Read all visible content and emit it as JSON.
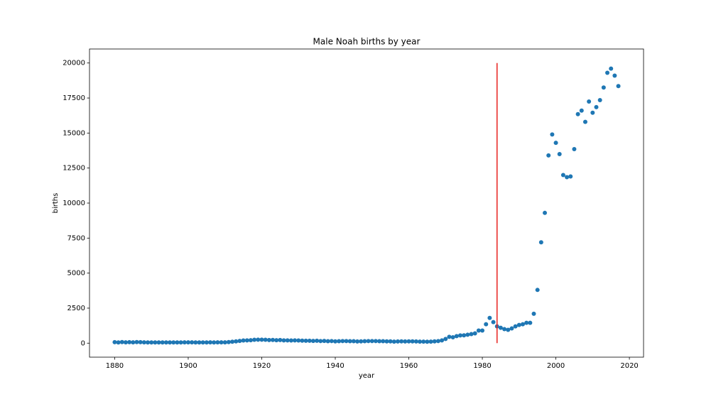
{
  "chart_data": {
    "type": "scatter",
    "title": "Male Noah births by year",
    "x_label": "year",
    "y_label": "births",
    "series": [
      {
        "color": "#1f77b4",
        "x": [
          1880,
          1881,
          1882,
          1883,
          1884,
          1885,
          1886,
          1887,
          1888,
          1889,
          1890,
          1891,
          1892,
          1893,
          1894,
          1895,
          1896,
          1897,
          1898,
          1899,
          1900,
          1901,
          1902,
          1903,
          1904,
          1905,
          1906,
          1907,
          1908,
          1909,
          1910,
          1911,
          1912,
          1913,
          1914,
          1915,
          1916,
          1917,
          1918,
          1919,
          1920,
          1921,
          1922,
          1923,
          1924,
          1925,
          1926,
          1927,
          1928,
          1929,
          1930,
          1931,
          1932,
          1933,
          1934,
          1935,
          1936,
          1937,
          1938,
          1939,
          1940,
          1941,
          1942,
          1943,
          1944,
          1945,
          1946,
          1947,
          1948,
          1949,
          1950,
          1951,
          1952,
          1953,
          1954,
          1955,
          1956,
          1957,
          1958,
          1959,
          1960,
          1961,
          1962,
          1963,
          1964,
          1965,
          1966,
          1967,
          1968,
          1969,
          1970,
          1971,
          1972,
          1973,
          1974,
          1975,
          1976,
          1977,
          1978,
          1979,
          1980,
          1981,
          1982,
          1983,
          1984,
          1985,
          1986,
          1987,
          1988,
          1989,
          1990,
          1991,
          1992,
          1993,
          1994,
          1995,
          1996,
          1997,
          1998,
          1999,
          2000,
          2001,
          2002,
          2003,
          2004,
          2005,
          2006,
          2007,
          2008,
          2009,
          2010,
          2011,
          2012,
          2013,
          2014,
          2015,
          2016,
          2017
        ],
        "values": [
          70,
          50,
          80,
          60,
          70,
          60,
          80,
          70,
          60,
          50,
          50,
          50,
          50,
          50,
          50,
          50,
          50,
          50,
          50,
          60,
          60,
          60,
          50,
          50,
          50,
          50,
          60,
          50,
          60,
          60,
          60,
          80,
          100,
          130,
          160,
          190,
          200,
          210,
          240,
          250,
          250,
          240,
          220,
          230,
          210,
          220,
          200,
          200,
          190,
          200,
          190,
          180,
          170,
          170,
          160,
          170,
          150,
          160,
          140,
          150,
          130,
          140,
          150,
          150,
          140,
          140,
          120,
          130,
          140,
          150,
          150,
          150,
          140,
          140,
          130,
          130,
          110,
          120,
          130,
          120,
          130,
          130,
          120,
          110,
          110,
          100,
          110,
          130,
          150,
          200,
          300,
          450,
          420,
          500,
          550,
          560,
          600,
          650,
          700,
          900,
          900,
          1350,
          1800,
          1500,
          1200,
          1100,
          1000,
          950,
          1050,
          1200,
          1300,
          1350,
          1450,
          1450,
          2100,
          3800,
          7200,
          9300,
          13400,
          14900,
          14300,
          13500,
          12000,
          11850,
          11900,
          13850,
          16350,
          16600,
          15800,
          17250,
          16450,
          16850,
          17350,
          18250,
          19300,
          19600,
          19100,
          18350
        ]
      }
    ],
    "vline": {
      "x": 1984,
      "ymin": 0,
      "ymax": 20000,
      "color": "#e8221e"
    },
    "xlim": [
      1873.15,
      2023.85
    ],
    "ylim": [
      -1000,
      21000
    ],
    "xticks": [
      1880,
      1900,
      1920,
      1940,
      1960,
      1980,
      2000,
      2020
    ],
    "yticks": [
      0,
      2500,
      5000,
      7500,
      10000,
      12500,
      15000,
      17500,
      20000
    ]
  }
}
